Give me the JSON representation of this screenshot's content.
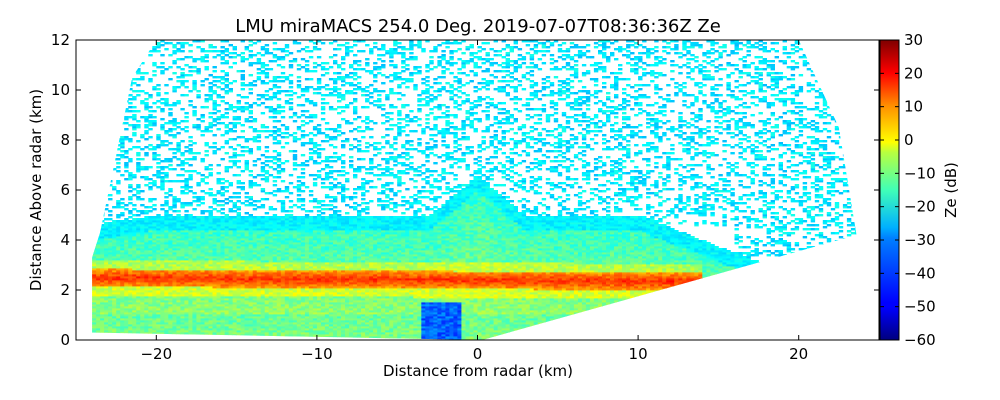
{
  "chart_data": {
    "type": "heatmap",
    "title": "LMU miraMACS 254.0 Deg. 2019-07-07T08:36:36Z  Ze",
    "xlabel": "Distance from radar (km)",
    "ylabel": "Distance Above radar  (km)",
    "xlim": [
      -25,
      25
    ],
    "ylim": [
      0,
      12
    ],
    "xticks": [
      -20,
      -10,
      0,
      10,
      20
    ],
    "xtick_labels": [
      "−20",
      "−10",
      "0",
      "10",
      "20"
    ],
    "yticks": [
      0,
      2,
      4,
      6,
      8,
      10,
      12
    ],
    "ytick_labels": [
      "0",
      "2",
      "4",
      "6",
      "8",
      "10",
      "12"
    ],
    "colorbar": {
      "label": "Ze (dB)",
      "range": [
        -60,
        30
      ],
      "colormap": "jet",
      "ticks": [
        -60,
        -50,
        -40,
        -30,
        -20,
        -10,
        0,
        10,
        20,
        30
      ],
      "tick_labels": [
        "−60",
        "−50",
        "−40",
        "−30",
        "−20",
        "−10",
        "0",
        "10",
        "20",
        "30"
      ]
    },
    "scan": {
      "azimuth_deg": 254.0,
      "timestamp": "2019-07-07T08:36:36Z",
      "coverage_polygon_km": [
        [
          -24.2,
          0.3
        ],
        [
          -24.2,
          2.9
        ],
        [
          -23.5,
          4.3
        ],
        [
          -21.5,
          10.5
        ],
        [
          -20,
          12
        ],
        [
          20,
          12
        ],
        [
          22.5,
          8.5
        ],
        [
          23.6,
          4.2
        ],
        [
          0.3,
          0.0
        ],
        [
          -24.2,
          0.3
        ]
      ]
    },
    "features": [
      {
        "name": "cloud layer",
        "x_range_km": [
          -24,
          16
        ],
        "base_km": 2.4,
        "top_km": 5.0,
        "typical_ze_db": -15
      },
      {
        "name": "bright band (melting layer)",
        "x_range_km": [
          -24,
          14
        ],
        "height_km": 2.5,
        "peak_ze_db": 15
      },
      {
        "name": "convective turret",
        "x_range_km": [
          -3,
          3
        ],
        "top_km": 6.6,
        "typical_ze_db": -30
      },
      {
        "name": "sparse clutter/noise above cloud",
        "height_range_km": [
          5,
          12
        ],
        "typical_ze_db": -28
      },
      {
        "name": "low-reflectivity column near radar",
        "x_range_km": [
          -3.5,
          -1
        ],
        "height_range_km": [
          0,
          1.5
        ],
        "typical_ze_db": -40
      }
    ]
  }
}
